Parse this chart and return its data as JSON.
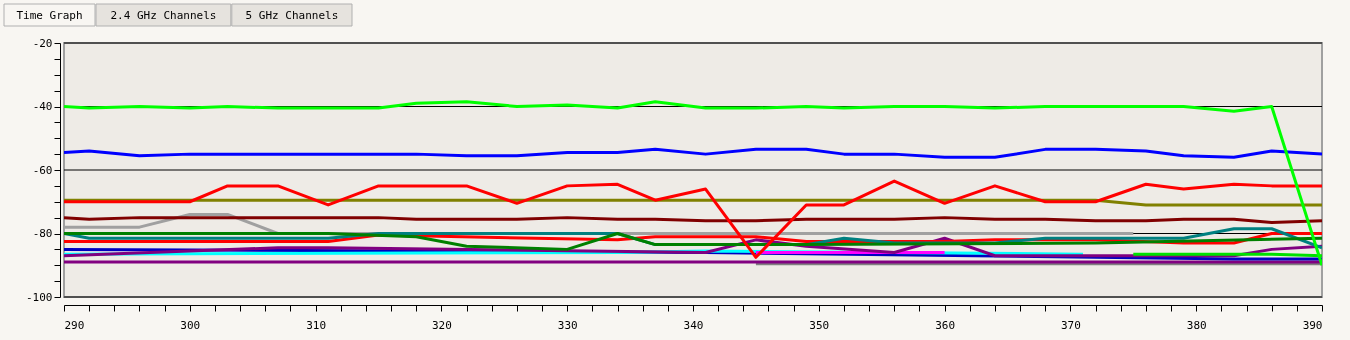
{
  "chart_data": {
    "type": "line",
    "annotations": [
      "Time Graph",
      "2.4 GHz Channels",
      "5 GHz Channels"
    ],
    "xlim": [
      290,
      390
    ],
    "ylim": [
      -100,
      -20
    ],
    "xticks": [
      290,
      {
        "value": 292,
        "label": null
      },
      {
        "value": 294,
        "label": null
      },
      {
        "value": 296,
        "label": null
      },
      {
        "value": 298,
        "label": null
      },
      300,
      {
        "value": 302,
        "label": null
      },
      {
        "value": 304,
        "label": null
      },
      {
        "value": 306,
        "label": null
      },
      {
        "value": 308,
        "label": null
      },
      310,
      {
        "value": 312,
        "label": null
      },
      {
        "value": 314,
        "label": null
      },
      {
        "value": 316,
        "label": null
      },
      {
        "value": 318,
        "label": null
      },
      320,
      {
        "value": 322,
        "label": null
      },
      {
        "value": 324,
        "label": null
      },
      {
        "value": 326,
        "label": null
      },
      {
        "value": 328,
        "label": null
      },
      330,
      {
        "value": 332,
        "label": null
      },
      {
        "value": 334,
        "label": null
      },
      {
        "value": 336,
        "label": null
      },
      {
        "value": 338,
        "label": null
      },
      340,
      {
        "value": 342,
        "label": null
      },
      {
        "value": 344,
        "label": null
      },
      {
        "value": 346,
        "label": null
      },
      {
        "value": 348,
        "label": null
      },
      350,
      {
        "value": 352,
        "label": null
      },
      {
        "value": 354,
        "label": null
      },
      {
        "value": 356,
        "label": null
      },
      {
        "value": 358,
        "label": null
      },
      360,
      {
        "value": 362,
        "label": null
      },
      {
        "value": 364,
        "label": null
      },
      {
        "value": 366,
        "label": null
      },
      {
        "value": 368,
        "label": null
      },
      370,
      {
        "value": 372,
        "label": null
      },
      {
        "value": 374,
        "label": null
      },
      {
        "value": 376,
        "label": null
      },
      {
        "value": 378,
        "label": null
      },
      380,
      {
        "value": 382,
        "label": null
      },
      {
        "value": 384,
        "label": null
      },
      {
        "value": 386,
        "label": null
      },
      {
        "value": 388,
        "label": null
      },
      390
    ],
    "yticks": [
      -100,
      {
        "value": -95,
        "label": null
      },
      {
        "value": -90,
        "label": null
      },
      {
        "value": -85,
        "label": null
      },
      -80,
      {
        "value": -75,
        "label": null
      },
      {
        "value": -70,
        "label": null
      },
      {
        "value": -65,
        "label": null
      },
      -60,
      {
        "value": -55,
        "label": null
      },
      {
        "value": -50,
        "label": null
      },
      {
        "value": -45,
        "label": null
      },
      -40,
      {
        "value": -35,
        "label": null
      },
      {
        "value": -30,
        "label": null
      },
      {
        "value": -25,
        "label": null
      },
      -20
    ],
    "grid": "y",
    "legend": false,
    "marker": "none",
    "line_style": "solid",
    "series": [
      {
        "color": "#a0a0a0",
        "x": [
          290,
          296,
          300,
          303,
          307,
          375
        ],
        "values": [
          -78,
          -78,
          -74,
          -74,
          -80,
          -80
        ]
      },
      {
        "color": "#808080",
        "x": [
          345,
          390
        ],
        "values": [
          -89.5,
          -89.5
        ]
      },
      {
        "color": "#800080",
        "x": [
          290,
          390
        ],
        "values": [
          -89,
          -89
        ]
      },
      {
        "color": "#0000c0",
        "x": [
          290,
          341,
          383,
          390
        ],
        "values": [
          -85,
          -86,
          -88,
          -88
        ]
      },
      {
        "color": "#00ffff",
        "x": [
          290,
          334,
          341,
          371
        ],
        "values": [
          -86.5,
          -86,
          -85.5,
          -86.5
        ]
      },
      {
        "color": "#ff00ff",
        "x": [
          345,
          360
        ],
        "values": [
          -86,
          -86
        ]
      },
      {
        "color": "#800080",
        "x": [
          290,
          307,
          311,
          341,
          345,
          349,
          356,
          360,
          364,
          383,
          386,
          390
        ],
        "values": [
          -87,
          -84.5,
          -84.5,
          -86,
          -82,
          -84,
          -86,
          -81.5,
          -87,
          -87,
          -85,
          -84
        ]
      },
      {
        "color": "#00e000",
        "x": [
          375,
          386,
          390
        ],
        "values": [
          -86.5,
          -86.5,
          -87
        ]
      },
      {
        "color": "#ff0000",
        "x": [
          290,
          311,
          315,
          334,
          337,
          345,
          349,
          360,
          364,
          372,
          379,
          383,
          386,
          390
        ],
        "values": [
          -82.5,
          -82.5,
          -80.5,
          -82,
          -81,
          -81,
          -82.5,
          -82.5,
          -82,
          -82,
          -83,
          -83,
          -80,
          -80
        ]
      },
      {
        "color": "#008080",
        "x": [
          290,
          292,
          311,
          315,
          334,
          337,
          349,
          352,
          356,
          364,
          368,
          379,
          383,
          386,
          390
        ],
        "values": [
          -80,
          -81.5,
          -81.5,
          -80,
          -80,
          -83.5,
          -83.5,
          -81.5,
          -83,
          -83,
          -81.5,
          -81.5,
          -78.5,
          -78.5,
          -84.5
        ]
      },
      {
        "color": "#008000",
        "x": [
          290,
          311,
          318,
          322,
          330,
          334,
          337,
          349,
          372,
          390
        ],
        "values": [
          -80,
          -80,
          -81,
          -84,
          -85,
          -80,
          -83.5,
          -83.5,
          -83,
          -81.5
        ]
      },
      {
        "color": "#800000",
        "x": [
          290,
          292,
          296,
          300,
          311,
          315,
          318,
          326,
          330,
          334,
          337,
          341,
          345,
          349,
          356,
          360,
          364,
          368,
          372,
          376,
          379,
          383,
          386,
          390
        ],
        "values": [
          -75,
          -75.5,
          -75,
          -75,
          -75,
          -75,
          -75.5,
          -75.5,
          -75,
          -75.5,
          -75.5,
          -76,
          -76,
          -75.5,
          -75.5,
          -75,
          -75.5,
          -75.5,
          -76,
          -76,
          -75.5,
          -75.5,
          -76.5,
          -76
        ]
      },
      {
        "color": "#808000",
        "x": [
          290,
          372,
          376,
          390
        ],
        "values": [
          -69.5,
          -69.5,
          -71,
          -71
        ]
      },
      {
        "color": "#ff0000",
        "x": [
          290,
          300,
          303,
          307,
          311,
          315,
          322,
          326,
          330,
          334,
          337,
          341,
          345,
          349,
          352,
          356,
          360,
          364,
          368,
          372,
          376,
          379,
          383,
          386,
          390
        ],
        "values": [
          -70,
          -70,
          -65,
          -65,
          -71,
          -65,
          -65,
          -70.5,
          -65,
          -64.5,
          -69.5,
          -66,
          -87.5,
          -71,
          -71,
          -63.5,
          -70.5,
          -65,
          -70,
          -70,
          -64.5,
          -66,
          -64.5,
          -65,
          -65
        ]
      },
      {
        "color": "#0000ff",
        "x": [
          290,
          292,
          296,
          300,
          311,
          318,
          322,
          326,
          330,
          334,
          337,
          341,
          345,
          349,
          352,
          356,
          360,
          364,
          368,
          372,
          376,
          379,
          383,
          386,
          390
        ],
        "values": [
          -54.5,
          -54,
          -55.5,
          -55,
          -55,
          -55,
          -55.5,
          -55.5,
          -54.5,
          -54.5,
          -53.5,
          -55,
          -53.5,
          -53.5,
          -55,
          -55,
          -56,
          -56,
          -53.5,
          -53.5,
          -54,
          -55.5,
          -56,
          -54,
          -55
        ]
      },
      {
        "color": "#00ff00",
        "x": [
          290,
          292,
          296,
          300,
          303,
          307,
          311,
          315,
          318,
          322,
          326,
          330,
          334,
          337,
          341,
          345,
          349,
          352,
          356,
          360,
          364,
          368,
          372,
          376,
          379,
          383,
          386,
          390
        ],
        "values": [
          -40,
          -40.5,
          -40,
          -40.5,
          -40,
          -40.5,
          -40.5,
          -40.5,
          -39,
          -38.5,
          -40,
          -39.5,
          -40.5,
          -38.5,
          -40.5,
          -40.5,
          -40,
          -40.5,
          -40,
          -40,
          -40.5,
          -40,
          -40,
          -40,
          -40,
          -41.5,
          -40,
          -90
        ]
      }
    ]
  }
}
